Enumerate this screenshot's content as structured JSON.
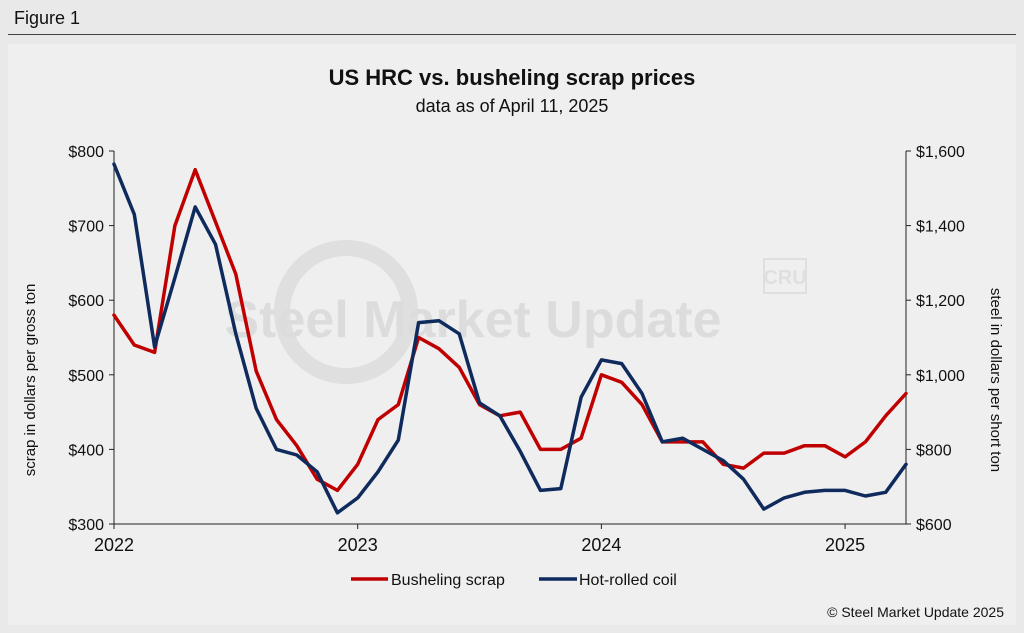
{
  "figure_label": "Figure 1",
  "watermark": {
    "text": "Steel Market Update",
    "logo_text": "CRU"
  },
  "chart_data": {
    "type": "line",
    "title": "US HRC vs. busheling scrap prices",
    "subtitle": "data as of April 11, 2025",
    "y_left_label": "scrap in dollars per gross ton",
    "y_right_label": "steel in dollars per short ton",
    "y_left_ticks": [
      "$800",
      "$700",
      "$600",
      "$500",
      "$400",
      "$300"
    ],
    "y_right_ticks": [
      "$1,600",
      "$1,400",
      "$1,200",
      "$1,000",
      "$800",
      "$600"
    ],
    "y_left_range": [
      300,
      800
    ],
    "y_right_range": [
      600,
      1600
    ],
    "x_ticks": [
      "2022",
      "2023",
      "2024",
      "2025"
    ],
    "x_range": [
      "2022-01",
      "2025-04"
    ],
    "grid": false,
    "legend_position": "bottom",
    "series": [
      {
        "name": "Busheling scrap",
        "axis": "left",
        "color": "#c00000",
        "x": [
          "2022-01",
          "2022-02",
          "2022-03",
          "2022-04",
          "2022-05",
          "2022-06",
          "2022-07",
          "2022-08",
          "2022-09",
          "2022-10",
          "2022-11",
          "2022-12",
          "2023-01",
          "2023-02",
          "2023-03",
          "2023-04",
          "2023-05",
          "2023-06",
          "2023-07",
          "2023-08",
          "2023-09",
          "2023-10",
          "2023-11",
          "2023-12",
          "2024-01",
          "2024-02",
          "2024-03",
          "2024-04",
          "2024-05",
          "2024-06",
          "2024-07",
          "2024-08",
          "2024-09",
          "2024-10",
          "2024-11",
          "2024-12",
          "2025-01",
          "2025-02",
          "2025-03",
          "2025-04"
        ],
        "values": [
          580,
          540,
          530,
          700,
          775,
          705,
          635,
          505,
          440,
          405,
          360,
          345,
          380,
          440,
          460,
          550,
          535,
          510,
          460,
          445,
          450,
          400,
          400,
          415,
          500,
          490,
          460,
          410,
          410,
          410,
          380,
          375,
          395,
          395,
          405,
          405,
          390,
          410,
          445,
          475
        ]
      },
      {
        "name": "Hot-rolled coil",
        "axis": "right",
        "color": "#0f2a5c",
        "x": [
          "2022-01",
          "2022-02",
          "2022-03",
          "2022-04",
          "2022-05",
          "2022-06",
          "2022-07",
          "2022-08",
          "2022-09",
          "2022-10",
          "2022-11",
          "2022-12",
          "2023-01",
          "2023-02",
          "2023-03",
          "2023-04",
          "2023-05",
          "2023-06",
          "2023-07",
          "2023-08",
          "2023-09",
          "2023-10",
          "2023-11",
          "2023-12",
          "2024-01",
          "2024-02",
          "2024-03",
          "2024-04",
          "2024-05",
          "2024-06",
          "2024-07",
          "2024-08",
          "2024-09",
          "2024-10",
          "2024-11",
          "2024-12",
          "2025-01",
          "2025-02",
          "2025-03",
          "2025-04"
        ],
        "values": [
          1565,
          1430,
          1075,
          1260,
          1450,
          1350,
          1110,
          910,
          800,
          785,
          740,
          630,
          670,
          740,
          825,
          1140,
          1145,
          1110,
          925,
          890,
          795,
          690,
          695,
          940,
          1040,
          1030,
          950,
          820,
          830,
          800,
          770,
          720,
          640,
          670,
          685,
          690,
          690,
          675,
          685,
          760
        ]
      }
    ]
  },
  "copyright": "© Steel Market Update 2025"
}
